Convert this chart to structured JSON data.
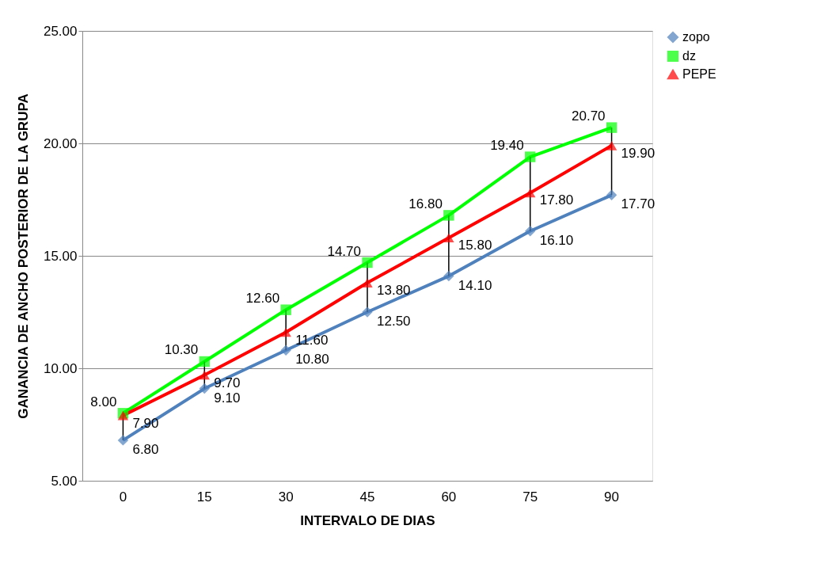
{
  "chart_data": {
    "type": "line",
    "xlabel": "INTERVALO DE DIAS",
    "ylabel": "GANANCIA DE ANCHO POSTERIOR DE LA GRUPA",
    "categories": [
      "0",
      "15",
      "30",
      "45",
      "60",
      "75",
      "90"
    ],
    "series": [
      {
        "name": "zopo",
        "color": "#4f81bd",
        "marker": "diamond",
        "values": [
          6.8,
          9.1,
          10.8,
          12.5,
          14.1,
          16.1,
          17.7
        ],
        "value_labels": [
          "6.80",
          "9.10",
          "10.80",
          "12.50",
          "14.10",
          "16.10",
          "17.70"
        ]
      },
      {
        "name": "dz",
        "color": "#00ff00",
        "marker": "square",
        "values": [
          8.0,
          10.3,
          12.6,
          14.7,
          16.8,
          19.4,
          20.7
        ],
        "value_labels": [
          "8.00",
          "10.30",
          "12.60",
          "14.70",
          "16.80",
          "19.40",
          "20.70"
        ]
      },
      {
        "name": "PEPE",
        "color": "#ff0000",
        "marker": "triangle",
        "values": [
          7.9,
          9.7,
          11.6,
          13.8,
          15.8,
          17.8,
          19.9
        ],
        "value_labels": [
          "7.90",
          "9.70",
          "11.60",
          "13.80",
          "15.80",
          "17.80",
          "19.90"
        ]
      }
    ],
    "ylim": [
      5,
      25
    ],
    "yticks": [
      {
        "value": 5,
        "label": "5.00"
      },
      {
        "value": 10,
        "label": "10.00"
      },
      {
        "value": 15,
        "label": "15.00"
      },
      {
        "value": 20,
        "label": "20.00"
      },
      {
        "value": 25,
        "label": "25.00"
      }
    ],
    "grid": "y",
    "legend": "right",
    "line_style": "solid"
  }
}
